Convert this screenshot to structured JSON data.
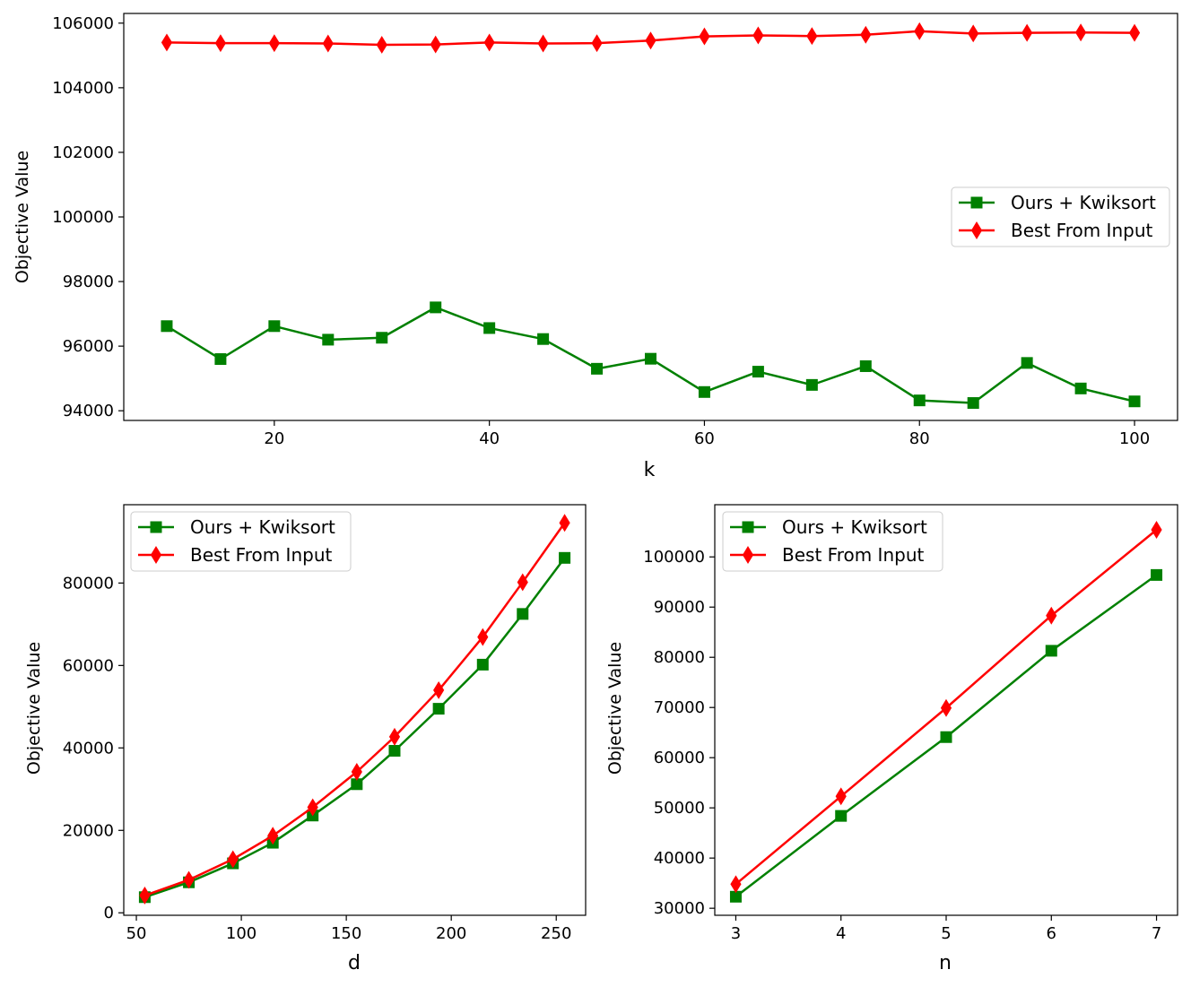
{
  "chart_data": [
    {
      "id": "k",
      "type": "line",
      "title": "",
      "xlabel": "k",
      "ylabel": "Objective Value",
      "xlim": [
        6,
        104
      ],
      "ylim": [
        93700,
        106300
      ],
      "xticks": [
        20,
        40,
        60,
        80,
        100
      ],
      "yticks": [
        94000,
        96000,
        98000,
        100000,
        102000,
        104000,
        106000
      ],
      "grid": false,
      "legend_position": "center-right",
      "x": [
        10,
        15,
        20,
        25,
        30,
        35,
        40,
        45,
        50,
        55,
        60,
        65,
        70,
        75,
        80,
        85,
        90,
        95,
        100
      ],
      "series": [
        {
          "name": "Ours + Kwiksort",
          "color": "#008000",
          "marker": "square",
          "values": [
            96620,
            95600,
            96620,
            96200,
            96260,
            97200,
            96560,
            96220,
            95300,
            95610,
            94580,
            95210,
            94800,
            95380,
            94320,
            94240,
            95480,
            94690,
            94290
          ]
        },
        {
          "name": "Best From Input",
          "color": "#ff0000",
          "marker": "diamond",
          "values": [
            105400,
            105380,
            105380,
            105370,
            105330,
            105340,
            105400,
            105370,
            105380,
            105460,
            105590,
            105620,
            105600,
            105640,
            105750,
            105680,
            105700,
            105710,
            105700
          ]
        }
      ]
    },
    {
      "id": "d",
      "type": "line",
      "title": "",
      "xlabel": "d",
      "ylabel": "Objective Value",
      "xlim": [
        44,
        264
      ],
      "ylim": [
        -600,
        99000
      ],
      "xticks": [
        50,
        100,
        150,
        200,
        250
      ],
      "yticks": [
        0,
        20000,
        40000,
        60000,
        80000
      ],
      "grid": false,
      "legend_position": "top-left",
      "x": [
        54,
        75,
        96,
        115,
        134,
        155,
        173,
        194,
        215,
        234,
        254
      ],
      "series": [
        {
          "name": "Ours + Kwiksort",
          "color": "#008000",
          "marker": "square",
          "values": [
            3800,
            7400,
            12000,
            17000,
            23600,
            31200,
            39300,
            49500,
            60200,
            72500,
            86100
          ]
        },
        {
          "name": "Best From Input",
          "color": "#ff0000",
          "marker": "diamond",
          "values": [
            4200,
            8000,
            13000,
            18700,
            25600,
            34200,
            42700,
            54000,
            66900,
            80200,
            94600
          ]
        }
      ]
    },
    {
      "id": "n",
      "type": "line",
      "title": "",
      "xlabel": "n",
      "ylabel": "Objective Value",
      "xlim": [
        2.8,
        7.2
      ],
      "ylim": [
        28600,
        110400
      ],
      "xticks": [
        3,
        4,
        5,
        6,
        7
      ],
      "yticks": [
        30000,
        40000,
        50000,
        60000,
        70000,
        80000,
        90000,
        100000
      ],
      "grid": false,
      "legend_position": "top-left",
      "x": [
        3,
        4,
        5,
        6,
        7
      ],
      "series": [
        {
          "name": "Ours + Kwiksort",
          "color": "#008000",
          "marker": "square",
          "values": [
            32300,
            48400,
            64100,
            81300,
            96400
          ]
        },
        {
          "name": "Best From Input",
          "color": "#ff0000",
          "marker": "diamond",
          "values": [
            34800,
            52300,
            69900,
            88300,
            105400
          ]
        }
      ]
    }
  ]
}
